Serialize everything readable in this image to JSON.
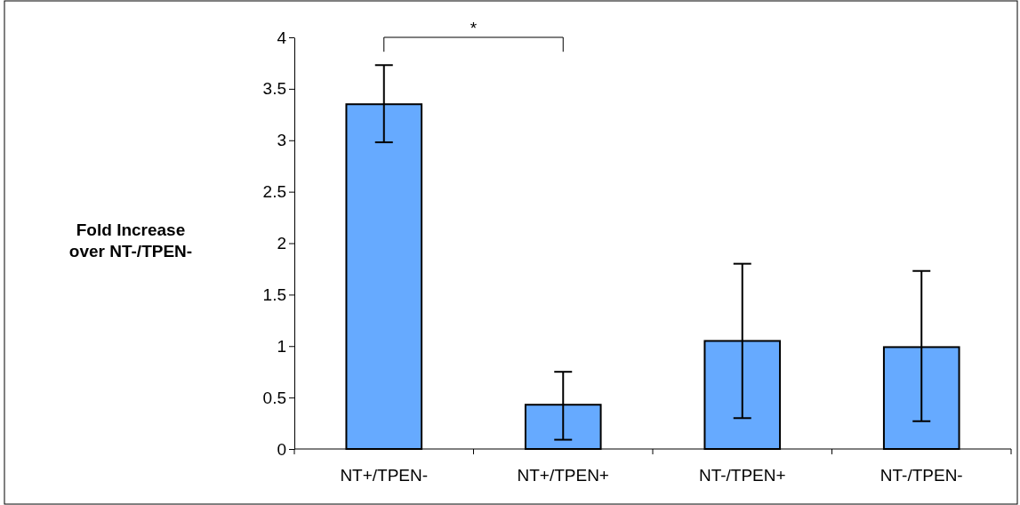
{
  "chart_data": {
    "type": "bar",
    "ylabel": "Fold Increase over NT-/TPEN-",
    "categories": [
      "NT+/TPEN-",
      "NT+/TPEN+",
      "NT-/TPEN+",
      "NT-/TPEN-"
    ],
    "values": [
      3.35,
      0.43,
      1.05,
      0.99
    ],
    "errors": [
      [
        2.98,
        3.73
      ],
      [
        0.09,
        0.75
      ],
      [
        0.3,
        1.8
      ],
      [
        0.27,
        1.73
      ]
    ],
    "color": "#66aaff",
    "ylim": [
      0,
      4
    ],
    "yticks": [
      0,
      0.5,
      1,
      1.5,
      2,
      2.5,
      3,
      3.5,
      4
    ],
    "grid": false,
    "annotations": [
      "*"
    ]
  }
}
